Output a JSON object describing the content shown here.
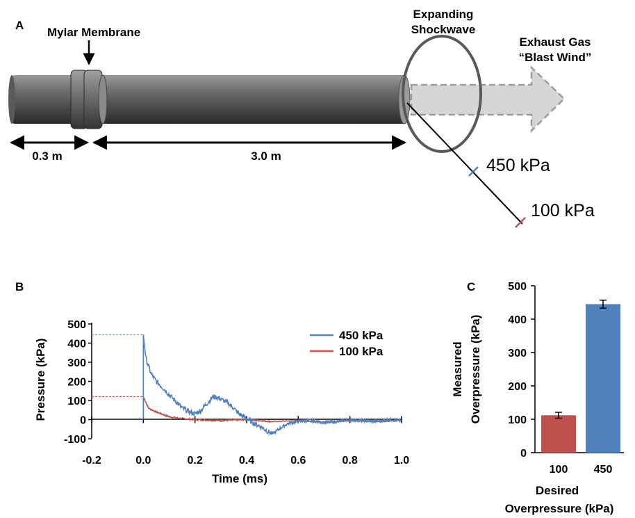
{
  "panel_a": {
    "label": "A",
    "membrane_label": "Mylar Membrane",
    "shock_label_1": "Expanding",
    "shock_label_2": "Shockwave",
    "exhaust_label_1": "Exhaust Gas",
    "exhaust_label_2": "“Blast Wind”",
    "dim_short": "0.3 m",
    "dim_long": "3.0 m",
    "sensor_high": "450 kPa",
    "sensor_low": "100 kPa",
    "colors": {
      "high": "#4f81bd",
      "low": "#c0504d"
    }
  },
  "panel_b": {
    "label": "B",
    "ylabel": "Pressure (kPa)",
    "xlabel": "Time (ms)",
    "y_ticks": [
      "500",
      "400",
      "300",
      "200",
      "100",
      "0",
      "-100"
    ],
    "x_ticks": [
      "-0.2",
      "0.0",
      "0.2",
      "0.4",
      "0.6",
      "0.8",
      "1.0"
    ],
    "legend": [
      "450 kPa",
      "100 kPa"
    ]
  },
  "panel_c": {
    "label": "C",
    "ylabel_1": "Measured",
    "ylabel_2": "Overpressure (kPa)",
    "xlabel_1": "Desired",
    "xlabel_2": "Overpressure (kPa)",
    "y_ticks": [
      "500",
      "400",
      "300",
      "200",
      "100",
      "0"
    ],
    "categories": [
      "100",
      "450"
    ]
  },
  "chart_data": [
    {
      "type": "line",
      "xlabel": "Time (ms)",
      "ylabel": "Pressure (kPa)",
      "xlim": [
        -0.2,
        1.0
      ],
      "ylim": [
        -100,
        500
      ],
      "legend_position": "top-right",
      "series": [
        {
          "name": "450 kPa",
          "color": "#4f81bd",
          "x": [
            -0.2,
            0.0,
            0.0,
            0.01,
            0.03,
            0.05,
            0.08,
            0.1,
            0.13,
            0.15,
            0.18,
            0.2,
            0.22,
            0.25,
            0.27,
            0.29,
            0.31,
            0.33,
            0.35,
            0.37,
            0.4,
            0.43,
            0.46,
            0.48,
            0.5,
            0.53,
            0.56,
            0.6,
            0.65,
            0.7,
            0.75,
            0.8,
            0.85,
            0.9,
            0.95,
            1.0
          ],
          "y": [
            0,
            0,
            445,
            320,
            240,
            200,
            160,
            130,
            90,
            60,
            40,
            30,
            45,
            90,
            120,
            115,
            100,
            85,
            60,
            30,
            5,
            -20,
            -40,
            -60,
            -75,
            -45,
            -20,
            -10,
            -5,
            -15,
            -10,
            0,
            -5,
            -10,
            0,
            -5
          ]
        },
        {
          "name": "100 kPa",
          "color": "#c0504d",
          "x": [
            -0.2,
            0.0,
            0.0,
            0.02,
            0.05,
            0.08,
            0.1,
            0.15,
            0.2,
            0.3,
            0.4,
            0.5,
            0.6,
            0.7,
            0.8,
            0.9,
            1.0
          ],
          "y": [
            0,
            0,
            120,
            60,
            40,
            25,
            15,
            5,
            0,
            -5,
            0,
            -10,
            -5,
            -15,
            -5,
            -10,
            -5
          ]
        }
      ]
    },
    {
      "type": "bar",
      "categories": [
        "100",
        "450"
      ],
      "values": [
        112,
        445
      ],
      "errors": [
        9,
        12
      ],
      "colors": [
        "#c0504d",
        "#4f81bd"
      ],
      "xlabel": "Desired Overpressure (kPa)",
      "ylabel": "Measured Overpressure (kPa)",
      "ylim": [
        0,
        500
      ]
    }
  ]
}
